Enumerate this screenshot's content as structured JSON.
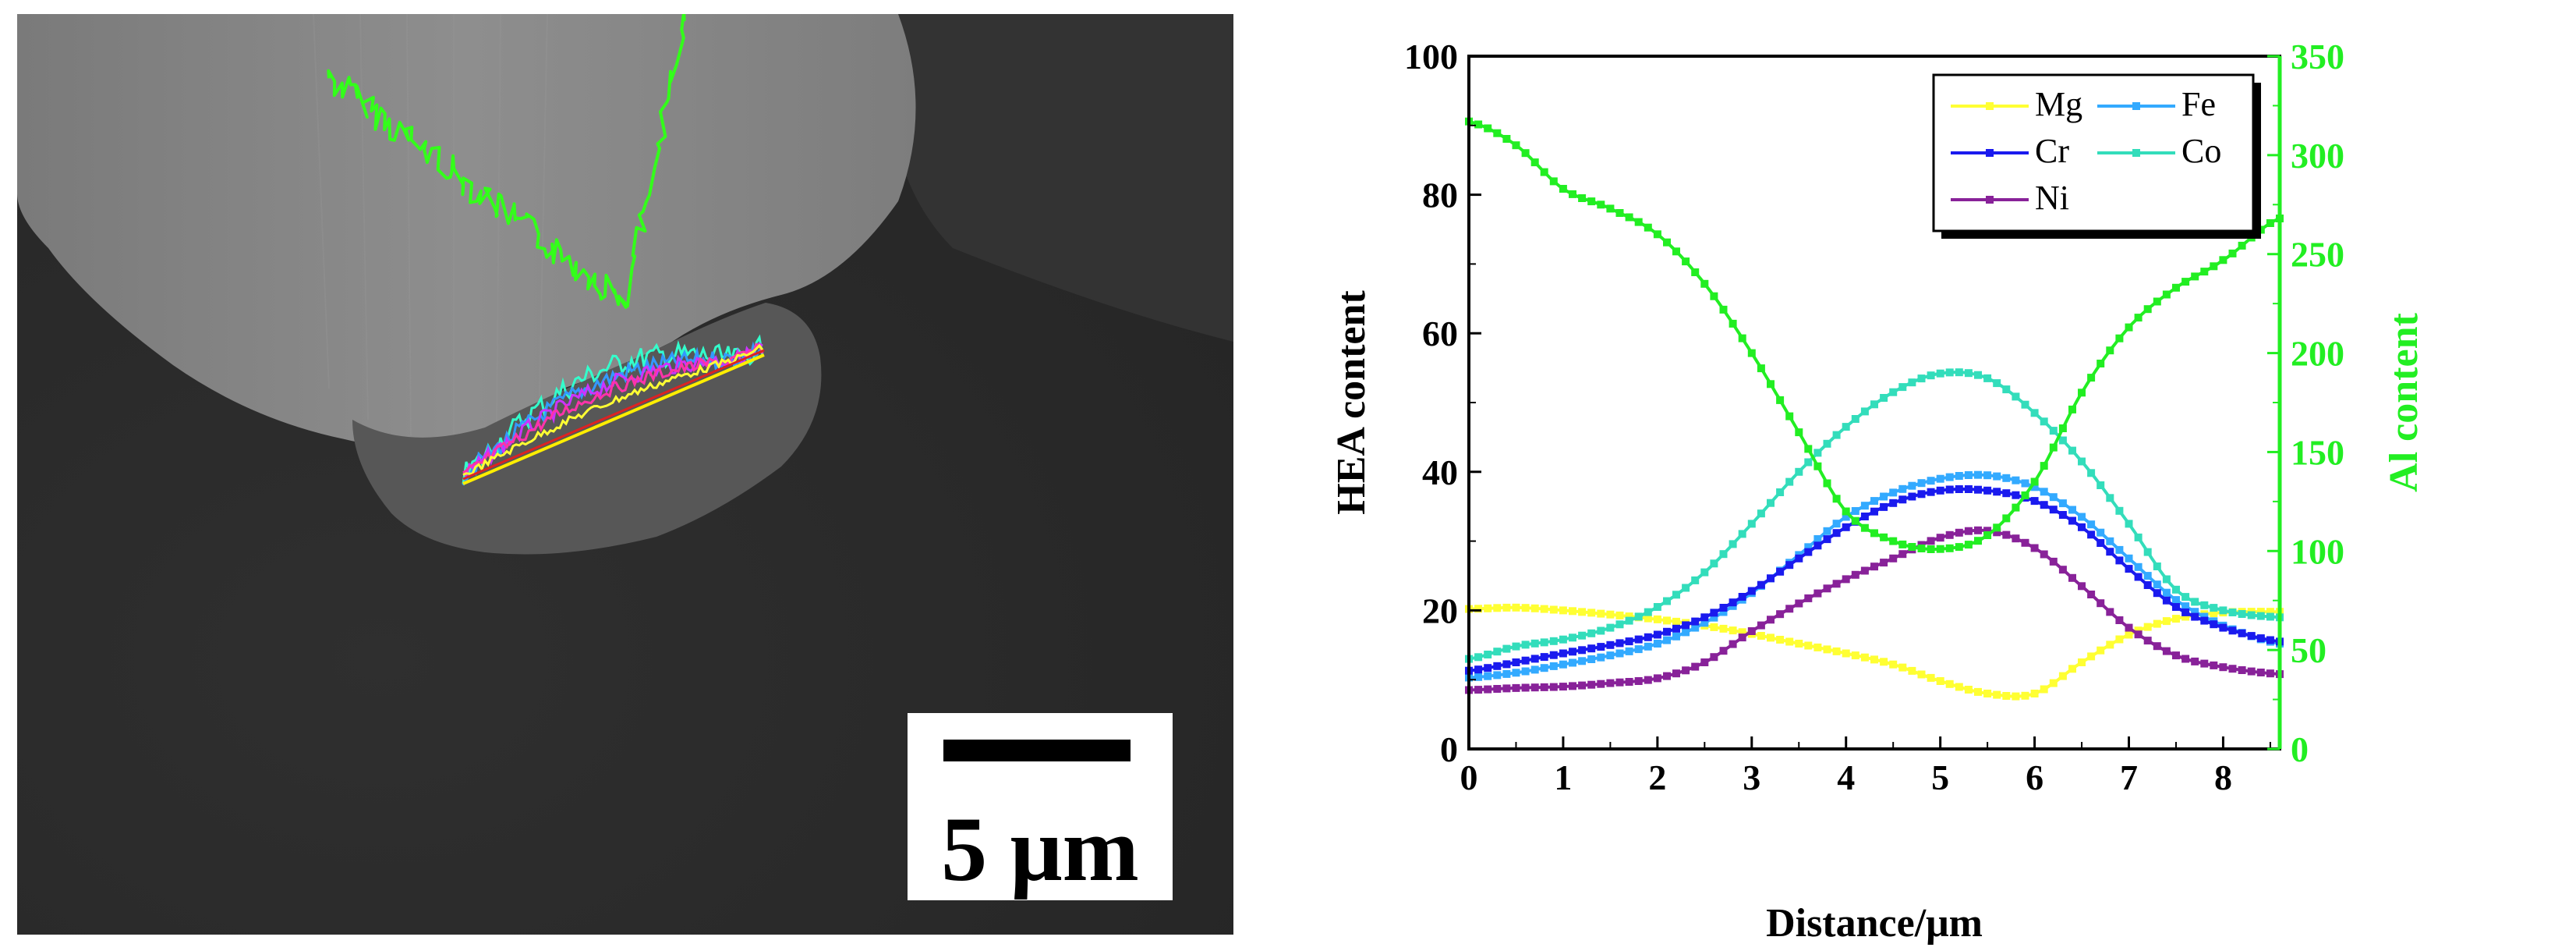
{
  "sem_image": {
    "scale_bar_label": "5 μm",
    "colors": {
      "background": "#2b2b2b",
      "particle": "#8a8a8a",
      "interface_zone": "#525252",
      "al_trace": "#33ff1a",
      "scale_box": "#ffffff",
      "scale_bar": "#000000"
    }
  },
  "chart_data": {
    "type": "line",
    "xlabel": "Distance/μm",
    "ylabel": "HEA content",
    "y2label": "Al content",
    "xlim": [
      0,
      8.6
    ],
    "ylim": [
      0,
      100
    ],
    "y2lim": [
      0,
      350
    ],
    "xticks": [
      "0",
      "1",
      "2",
      "3",
      "4",
      "5",
      "6",
      "7",
      "8"
    ],
    "yticks": [
      "0",
      "20",
      "40",
      "60",
      "80",
      "100"
    ],
    "y2ticks": [
      "0",
      "50",
      "100",
      "150",
      "200",
      "250",
      "300",
      "350"
    ],
    "grid": false,
    "legend_position": "top-right",
    "series": [
      {
        "name": "Mg",
        "axis": "left",
        "color": "#ffff33",
        "x": [
          0,
          0.5,
          1,
          1.5,
          2,
          2.5,
          3,
          3.5,
          4,
          4.5,
          5,
          5.5,
          6,
          6.5,
          7,
          7.5,
          8,
          8.6
        ],
        "values": [
          20.2,
          20.4,
          20.0,
          19.4,
          18.7,
          17.8,
          16.6,
          15.2,
          13.8,
          12.2,
          9.8,
          8.0,
          8.0,
          12.5,
          16.5,
          18.8,
          19.7,
          19.8
        ]
      },
      {
        "name": "Fe",
        "axis": "left",
        "color": "#33aaff",
        "x": [
          0,
          0.5,
          1,
          1.5,
          2,
          2.5,
          3,
          3.5,
          4,
          4.5,
          5,
          5.5,
          6,
          6.5,
          7,
          7.5,
          8,
          8.6
        ],
        "values": [
          10.3,
          11.0,
          12.2,
          13.5,
          15.2,
          18.2,
          22.5,
          28.0,
          33.5,
          37.0,
          39.0,
          39.5,
          37.8,
          33.5,
          27.5,
          21.5,
          17.8,
          15.2
        ]
      },
      {
        "name": "Cr",
        "axis": "left",
        "color": "#1a1aee",
        "x": [
          0,
          0.5,
          1,
          1.5,
          2,
          2.5,
          3,
          3.5,
          4,
          4.5,
          5,
          5.5,
          6,
          6.5,
          7,
          7.5,
          8,
          8.6
        ],
        "values": [
          11.3,
          12.5,
          13.8,
          15.0,
          16.5,
          19.0,
          22.8,
          27.5,
          32.0,
          35.5,
          37.3,
          37.3,
          35.8,
          32.0,
          26.0,
          20.5,
          17.5,
          15.5
        ]
      },
      {
        "name": "Co",
        "axis": "left",
        "color": "#33ddbb",
        "x": [
          0,
          0.5,
          1,
          1.5,
          2,
          2.5,
          3,
          3.5,
          4,
          4.5,
          5,
          5.5,
          6,
          6.5,
          7,
          7.5,
          8,
          8.6
        ],
        "values": [
          13.0,
          14.8,
          15.8,
          17.5,
          20.5,
          25.5,
          32.5,
          40.0,
          46.5,
          51.5,
          54.2,
          53.5,
          48.5,
          41.5,
          32.5,
          23.0,
          20.0,
          19.0
        ]
      },
      {
        "name": "Ni",
        "axis": "left",
        "color": "#882299",
        "x": [
          0,
          0.5,
          1,
          1.5,
          2,
          2.5,
          3,
          3.5,
          4,
          4.5,
          5,
          5.5,
          6,
          6.5,
          7,
          7.5,
          8,
          8.6
        ],
        "values": [
          8.5,
          8.8,
          9.0,
          9.5,
          10.2,
          12.5,
          17.0,
          21.0,
          24.5,
          27.5,
          30.5,
          31.5,
          29.0,
          23.5,
          17.5,
          13.5,
          11.8,
          10.8
        ]
      },
      {
        "name": "",
        "axis": "right",
        "color": "#22ee22",
        "x": [
          0,
          0.5,
          1,
          1.5,
          2,
          2.5,
          3,
          3.5,
          4,
          4.5,
          5,
          5.5,
          6,
          6.5,
          7,
          7.5,
          8,
          8.6
        ],
        "values": [
          317,
          305,
          283,
          273,
          260,
          235,
          200,
          160,
          120,
          105,
          101,
          108,
          135,
          180,
          213,
          233,
          247,
          268
        ]
      }
    ]
  }
}
